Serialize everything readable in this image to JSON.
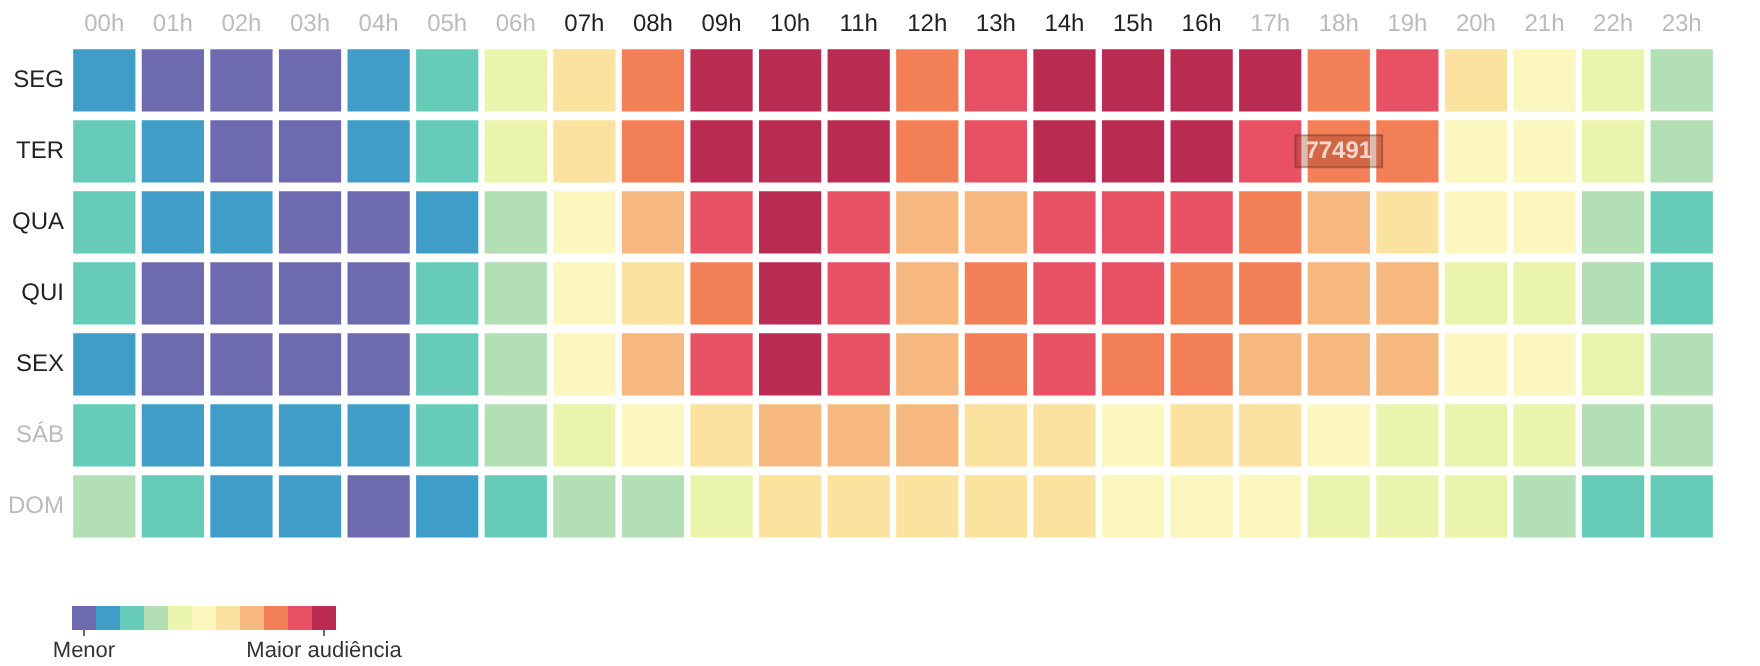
{
  "chart_data": {
    "type": "heatmap",
    "categories": [
      "00h",
      "01h",
      "02h",
      "03h",
      "04h",
      "05h",
      "06h",
      "07h",
      "08h",
      "09h",
      "10h",
      "11h",
      "12h",
      "13h",
      "14h",
      "15h",
      "16h",
      "17h",
      "18h",
      "19h",
      "20h",
      "21h",
      "22h",
      "23h"
    ],
    "y_categories": [
      "SEG",
      "TER",
      "QUA",
      "QUI",
      "SEX",
      "SÁB",
      "DOM"
    ],
    "cells": [
      [
        2,
        1,
        1,
        1,
        2,
        3,
        5,
        7,
        9,
        11,
        11,
        11,
        9,
        10,
        11,
        11,
        11,
        11,
        9,
        10,
        7,
        6,
        5,
        4
      ],
      [
        3,
        2,
        1,
        1,
        2,
        3,
        5,
        7,
        9,
        11,
        11,
        11,
        9,
        10,
        11,
        11,
        11,
        10,
        9,
        9,
        6,
        6,
        5,
        4
      ],
      [
        3,
        2,
        2,
        1,
        1,
        2,
        4,
        6,
        8,
        10,
        11,
        10,
        8,
        8,
        10,
        10,
        10,
        9,
        8,
        7,
        6,
        6,
        4,
        3
      ],
      [
        3,
        1,
        1,
        1,
        1,
        3,
        4,
        6,
        7,
        9,
        11,
        10,
        8,
        9,
        10,
        10,
        9,
        9,
        8,
        8,
        5,
        5,
        4,
        3
      ],
      [
        2,
        1,
        1,
        1,
        1,
        3,
        4,
        6,
        8,
        10,
        11,
        10,
        8,
        9,
        10,
        9,
        9,
        8,
        8,
        8,
        6,
        6,
        5,
        4
      ],
      [
        3,
        2,
        2,
        2,
        2,
        3,
        4,
        5,
        6,
        7,
        8,
        8,
        8,
        7,
        7,
        6,
        7,
        7,
        6,
        5,
        5,
        5,
        4,
        4
      ],
      [
        4,
        3,
        2,
        2,
        1,
        2,
        3,
        4,
        4,
        5,
        7,
        7,
        7,
        7,
        7,
        6,
        6,
        6,
        5,
        5,
        5,
        4,
        3,
        3
      ]
    ],
    "colors": [
      "#6e6aaf",
      "#3f9dc8",
      "#66cbb8",
      "#b3dfb4",
      "#ebf4ad",
      "#fbf7bf",
      "#fce29f",
      "#f6b87e",
      "#f37f57",
      "#e85063",
      "#ba2b52"
    ],
    "clim": [
      0.5,
      11.5
    ],
    "cticks": [
      {
        "value": 1,
        "label": "Menor"
      },
      {
        "value": 11,
        "label": "Maior audiência"
      }
    ],
    "annotations": [
      {
        "text": "77491",
        "x": "18h",
        "y": "TER"
      }
    ]
  }
}
